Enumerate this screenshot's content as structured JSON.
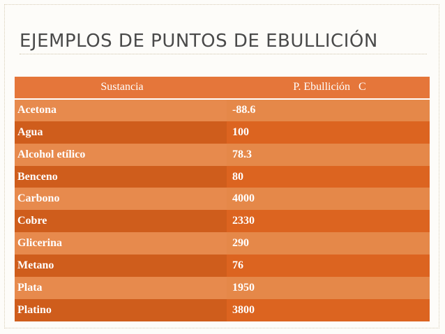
{
  "slide": {
    "title": "EJEMPLOS DE PUNTOS DE EBULLICIÓN"
  },
  "table": {
    "headers": [
      "Sustancia",
      "P. Ebullición   C"
    ],
    "rows": [
      [
        "Acetona",
        "-88.6"
      ],
      [
        "Agua",
        "100"
      ],
      [
        "Alcohol etílico",
        "78.3"
      ],
      [
        "Benceno",
        "80"
      ],
      [
        "Carbono",
        "4000"
      ],
      [
        "Cobre",
        "2330"
      ],
      [
        "Glicerina",
        "290"
      ],
      [
        "Metano",
        "76"
      ],
      [
        "Plata",
        "1950"
      ],
      [
        "Platino",
        "3800"
      ]
    ]
  },
  "colors": {
    "header": "#e5763a",
    "row_light": "#e78a4d",
    "row_dark": "#cf5d1c",
    "title_text": "#4a4a4a"
  }
}
